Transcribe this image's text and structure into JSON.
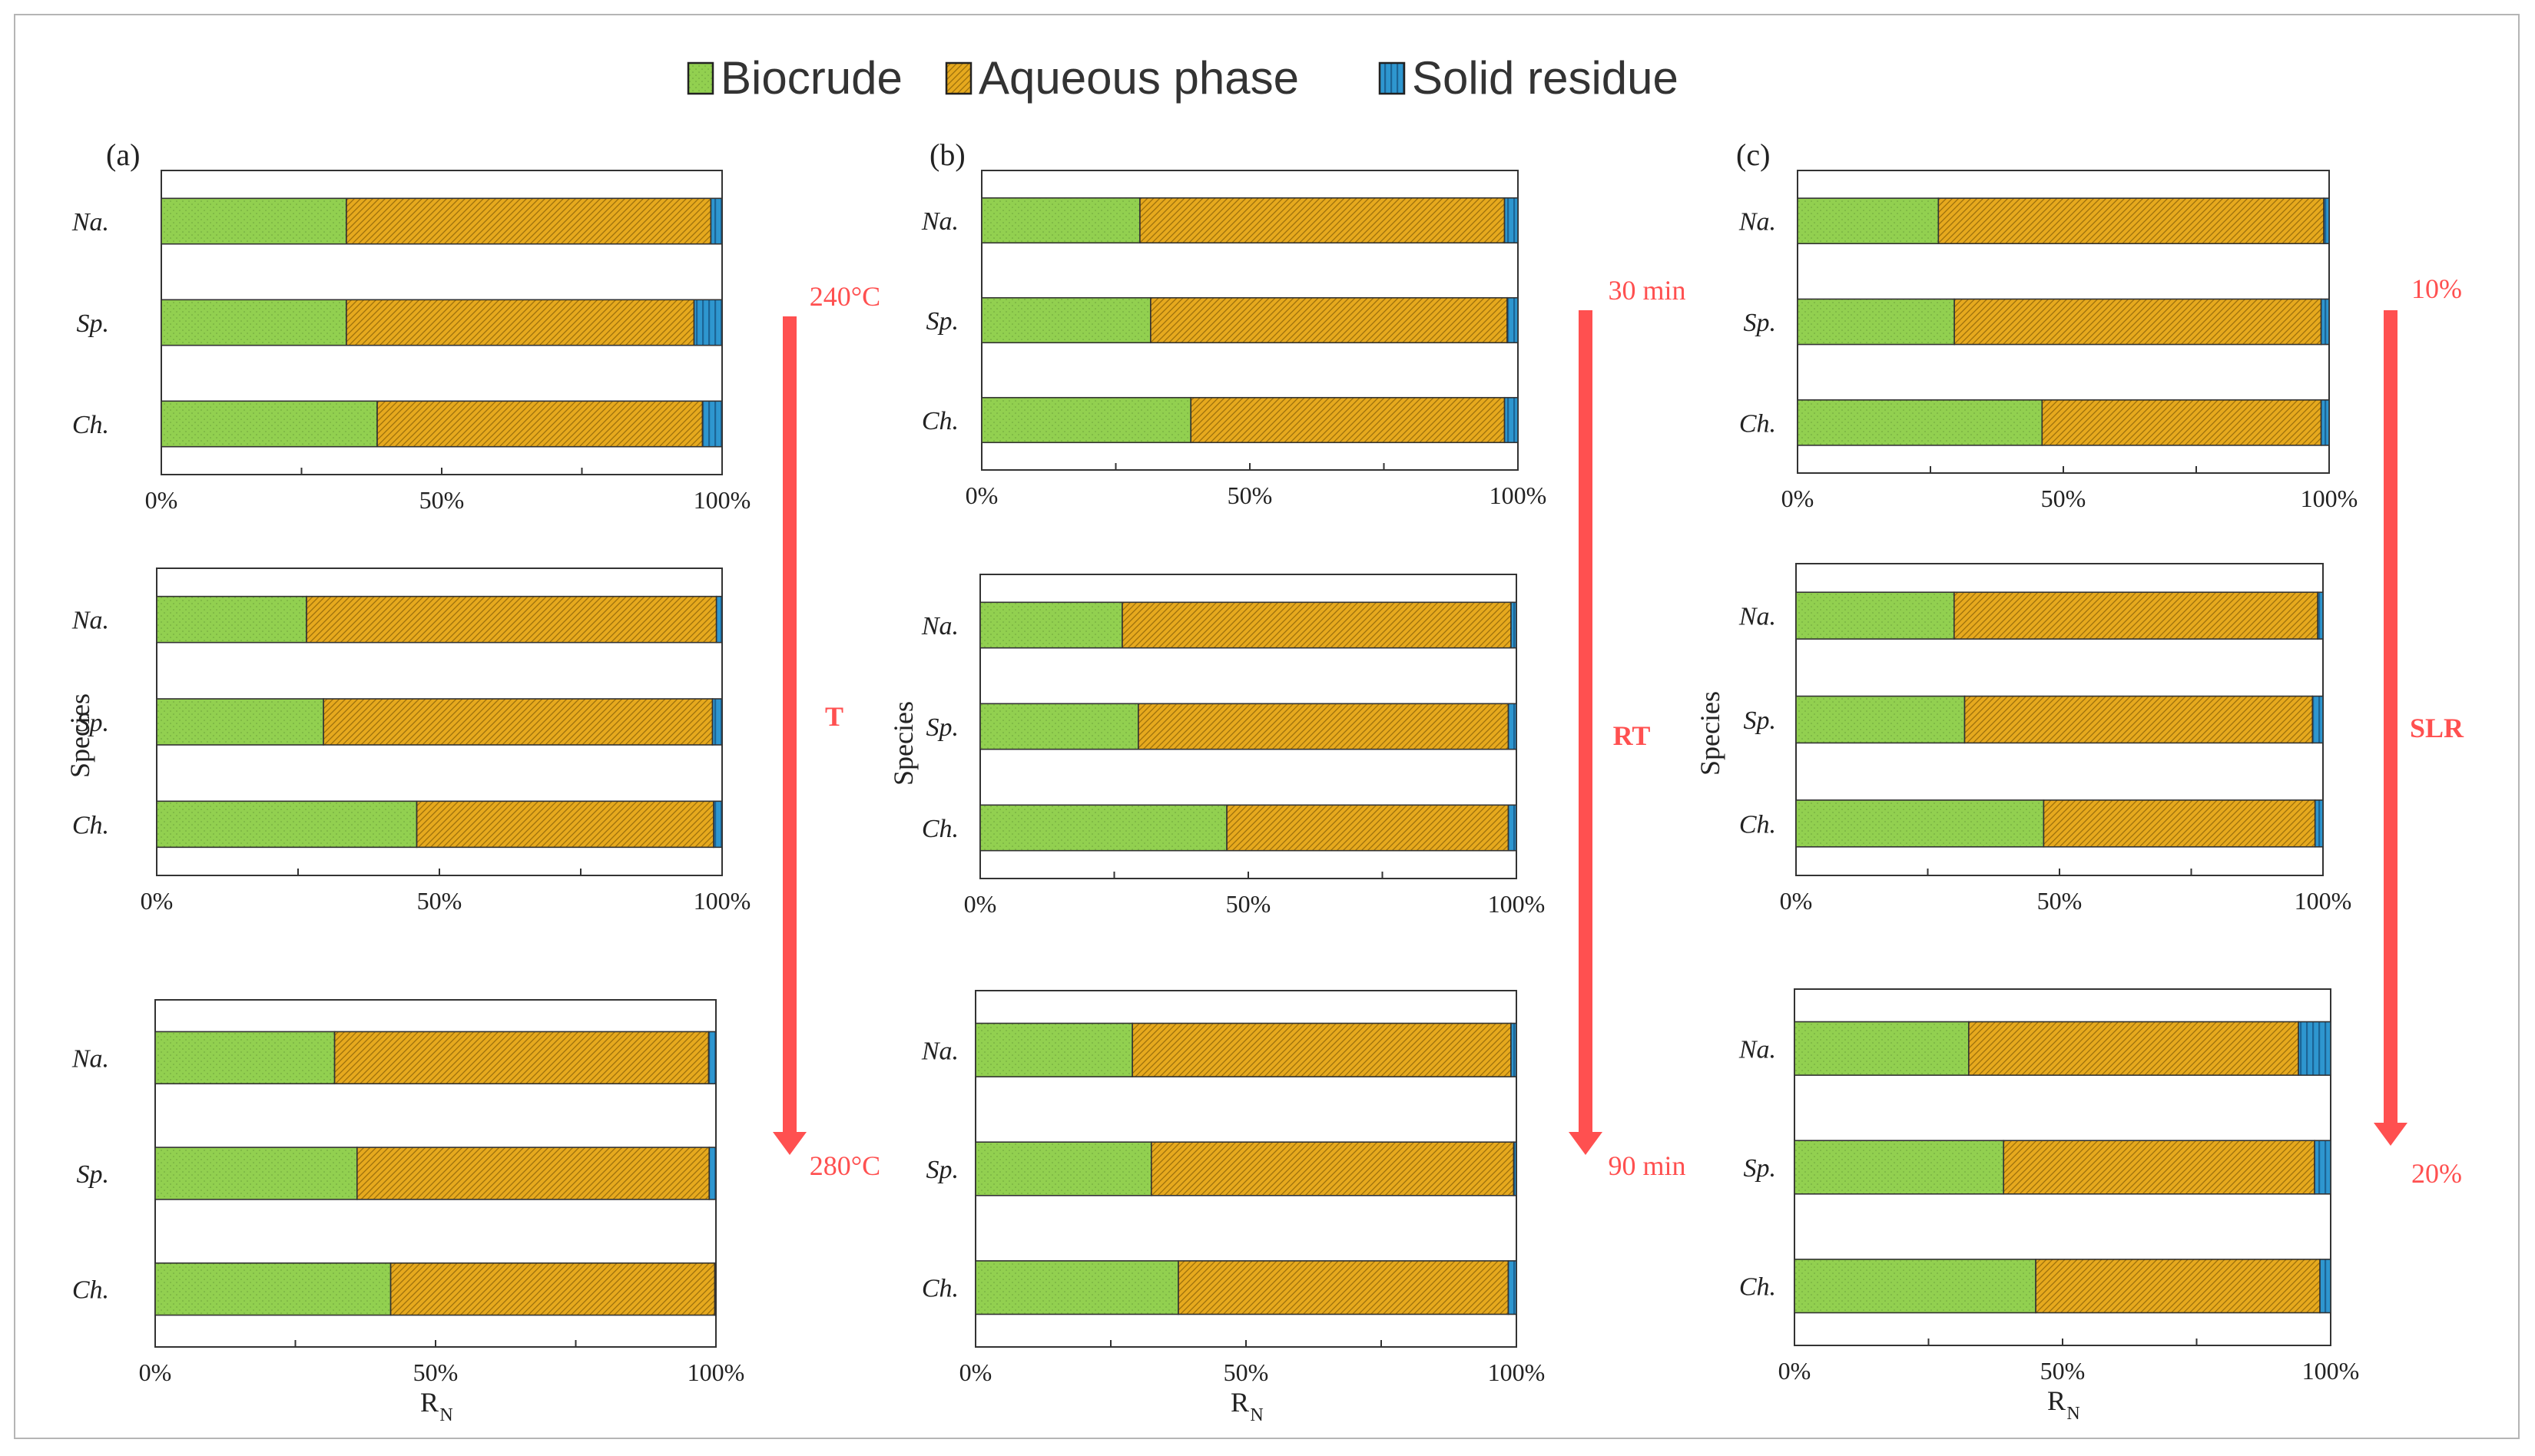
{
  "legend": {
    "items": [
      {
        "label": "Biocrude",
        "color": "#92d050",
        "pattern": "dots"
      },
      {
        "label": "Aqueous phase",
        "color": "#e6a91e",
        "pattern": "diagonal"
      },
      {
        "label": "Solid residue",
        "color": "#2e96cf",
        "pattern": "vertical"
      }
    ]
  },
  "arrow_color": "#ff5050",
  "chart_data": {
    "type": "bar",
    "orientation": "horizontal",
    "stacked": true,
    "series_names": [
      "Biocrude",
      "Aqueous phase",
      "Solid residue"
    ],
    "categories": [
      "Na.",
      "Sp.",
      "Ch."
    ],
    "xlim": [
      0,
      100
    ],
    "xticks": [
      "0%",
      "50%",
      "100%"
    ],
    "xlabel": "R",
    "xlabel_sub": "N",
    "ylabel": "Species",
    "columns": [
      {
        "label": "(a)",
        "variable": "T",
        "start": "240°C",
        "end": "280°C",
        "panels": [
          {
            "values": {
              "Na.": [
                33,
                65,
                2
              ],
              "Sp.": [
                33,
                62,
                5
              ],
              "Ch.": [
                38.5,
                58,
                3.5
              ]
            }
          },
          {
            "values": {
              "Na.": [
                26.5,
                72.5,
                1
              ],
              "Sp.": [
                29.5,
                68.8,
                1.7
              ],
              "Ch.": [
                46,
                52.5,
                1.5
              ]
            }
          },
          {
            "values": {
              "Na.": [
                32,
                66.7,
                1.3
              ],
              "Sp.": [
                36,
                62.8,
                1.2
              ],
              "Ch.": [
                42,
                57.8,
                0.2
              ]
            }
          }
        ]
      },
      {
        "label": "(b)",
        "variable": "RT",
        "start": "30 min",
        "end": "90 min",
        "panels": [
          {
            "values": {
              "Na.": [
                29.5,
                68,
                2.5
              ],
              "Sp.": [
                31.5,
                66.5,
                2
              ],
              "Ch.": [
                39,
                58.5,
                2.5
              ]
            }
          },
          {
            "values": {
              "Na.": [
                26.5,
                72.5,
                1
              ],
              "Sp.": [
                29.5,
                69,
                1.5
              ],
              "Ch.": [
                46,
                52.5,
                1.5
              ]
            }
          },
          {
            "values": {
              "Na.": [
                29,
                70,
                1
              ],
              "Sp.": [
                32.5,
                67,
                0.5
              ],
              "Ch.": [
                37.5,
                61,
                1.5
              ]
            }
          }
        ]
      },
      {
        "label": "(c)",
        "variable": "SLR",
        "start": "10%",
        "end": "20%",
        "panels": [
          {
            "values": {
              "Na.": [
                26.5,
                72.5,
                1
              ],
              "Sp.": [
                29.5,
                69,
                1.5
              ],
              "Ch.": [
                46,
                52.5,
                1.5
              ]
            }
          },
          {
            "values": {
              "Na.": [
                30,
                69,
                1
              ],
              "Sp.": [
                32,
                66,
                2
              ],
              "Ch.": [
                47,
                51.5,
                1.5
              ]
            }
          },
          {
            "values": {
              "Na.": [
                32.5,
                61.5,
                6
              ],
              "Sp.": [
                39,
                58,
                3
              ],
              "Ch.": [
                45,
                53,
                2
              ]
            }
          }
        ]
      }
    ]
  }
}
